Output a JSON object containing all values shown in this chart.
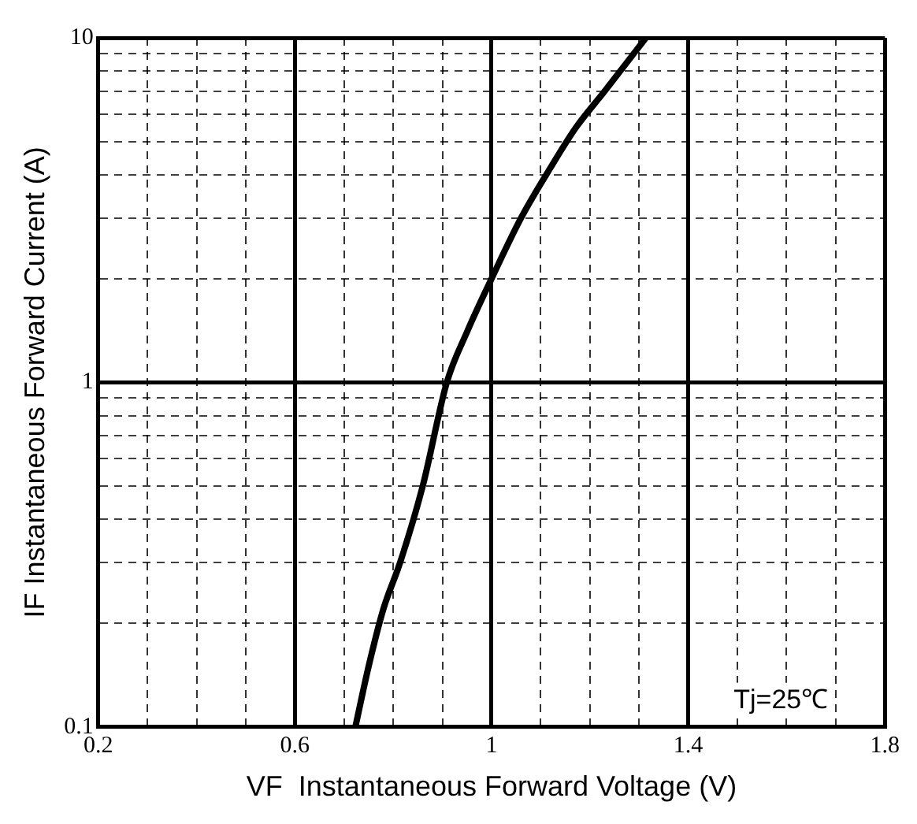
{
  "chart_data": {
    "type": "line",
    "xlabel": "VF  Instantaneous Forward Voltage (V)",
    "ylabel": "IF Instantaneous Forward Current (A)",
    "annotations": [
      "Tj=25℃"
    ],
    "series": [
      {
        "color": "#000000",
        "x": [
          0.723,
          0.75,
          0.78,
          0.814,
          0.86,
          0.909,
          0.95,
          1.0,
          1.06,
          1.12,
          1.172,
          1.23,
          1.314
        ],
        "values": [
          0.1,
          0.15,
          0.22,
          0.3,
          0.5,
          1,
          1.4,
          2,
          3,
          4.2,
          5.5,
          7,
          10
        ]
      }
    ],
    "xlim": [
      0.2,
      1.8
    ],
    "xticks": [
      0.2,
      {
        "value": 0.3,
        "label": null
      },
      {
        "value": 0.4,
        "label": null
      },
      {
        "value": 0.5,
        "label": null
      },
      0.6,
      {
        "value": 0.7,
        "label": null
      },
      {
        "value": 0.8,
        "label": null
      },
      {
        "value": 0.9,
        "label": null
      },
      1,
      {
        "value": 1.1,
        "label": null
      },
      {
        "value": 1.2,
        "label": null
      },
      {
        "value": 1.3,
        "label": null
      },
      1.4,
      {
        "value": 1.5,
        "label": null
      },
      {
        "value": 1.6,
        "label": null
      },
      {
        "value": 1.7,
        "label": null
      },
      1.8
    ],
    "ylim": [
      0.1,
      10
    ],
    "yticks": [
      0.1,
      {
        "value": 0.2,
        "label": null
      },
      {
        "value": 0.3,
        "label": null
      },
      {
        "value": 0.4,
        "label": null
      },
      {
        "value": 0.5,
        "label": null
      },
      {
        "value": 0.6,
        "label": null
      },
      {
        "value": 0.7,
        "label": null
      },
      {
        "value": 0.8,
        "label": null
      },
      {
        "value": 0.9,
        "label": null
      },
      1,
      {
        "value": 2,
        "label": null
      },
      {
        "value": 3,
        "label": null
      },
      {
        "value": 4,
        "label": null
      },
      {
        "value": 5,
        "label": null
      },
      {
        "value": 6,
        "label": null
      },
      {
        "value": 7,
        "label": null
      },
      {
        "value": 8,
        "label": null
      },
      {
        "value": 9,
        "label": null
      },
      10
    ],
    "log": "y",
    "grid": true,
    "legend": false,
    "marker": "none",
    "line_style": "solid"
  }
}
